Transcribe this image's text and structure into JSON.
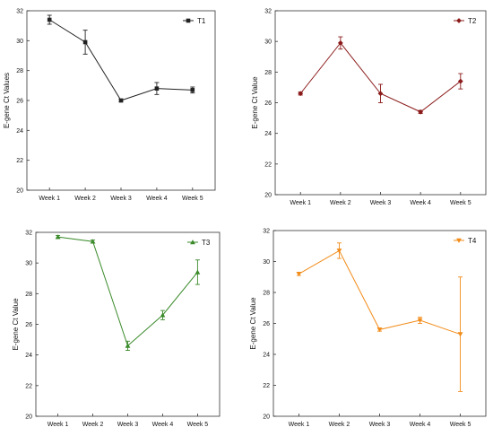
{
  "chart_data": [
    {
      "type": "line",
      "categories": [
        "Week 1",
        "Week 2",
        "Week 3",
        "Week 4",
        "Week 5"
      ],
      "series": [
        {
          "name": "T1",
          "values": [
            31.4,
            29.9,
            26.0,
            26.8,
            26.7
          ],
          "errors": [
            0.3,
            0.8,
            0.1,
            0.4,
            0.2
          ],
          "color": "#222222",
          "marker": "square"
        }
      ],
      "ylabel": "E-gene Ct Values",
      "ylim": [
        20,
        32
      ],
      "yticks": [
        "20",
        "22",
        "24",
        "26",
        "28",
        "30",
        "32"
      ],
      "legend": "top-right"
    },
    {
      "type": "line",
      "categories": [
        "Week 1",
        "Week 2",
        "Week 3",
        "Week 4",
        "Week 5"
      ],
      "series": [
        {
          "name": "T2",
          "values": [
            26.6,
            29.9,
            26.6,
            25.4,
            27.4
          ],
          "errors": [
            0.1,
            0.4,
            0.6,
            0.1,
            0.5
          ],
          "color": "#8b1a1a",
          "marker": "diamond"
        }
      ],
      "ylabel": "E-gene Ct Value",
      "ylim": [
        20,
        32
      ],
      "yticks": [
        "20",
        "22",
        "24",
        "26",
        "28",
        "30",
        "32"
      ],
      "legend": "top-right"
    },
    {
      "type": "line",
      "categories": [
        "Week 1",
        "Week 2",
        "Week 3",
        "Week 4",
        "Week 5"
      ],
      "series": [
        {
          "name": "T3",
          "values": [
            31.7,
            31.4,
            24.6,
            26.6,
            29.4
          ],
          "errors": [
            0.1,
            0.1,
            0.3,
            0.3,
            0.8
          ],
          "color": "#3a8a2a",
          "marker": "triangle-up"
        }
      ],
      "ylabel": "E-gene Ct Value",
      "ylim": [
        20,
        32
      ],
      "yticks": [
        "20",
        "22",
        "24",
        "26",
        "28",
        "30",
        "32"
      ],
      "legend": "top-right"
    },
    {
      "type": "line",
      "categories": [
        "Week 1",
        "Week 2",
        "Week 3",
        "Week 4",
        "Week 5"
      ],
      "series": [
        {
          "name": "T4",
          "values": [
            29.2,
            30.7,
            25.6,
            26.2,
            25.3
          ],
          "errors": [
            0.1,
            0.5,
            0.1,
            0.2,
            3.7
          ],
          "color": "#f28c1a",
          "marker": "triangle-down"
        }
      ],
      "ylabel": "E-gene Ct Value",
      "ylim": [
        20,
        32
      ],
      "yticks": [
        "20",
        "22",
        "24",
        "26",
        "28",
        "30",
        "32"
      ],
      "legend": "top-right"
    }
  ]
}
